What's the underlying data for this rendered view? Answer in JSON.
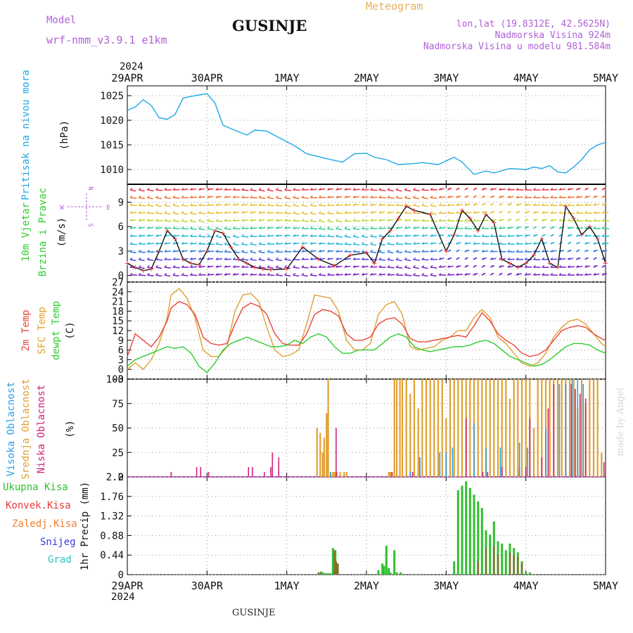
{
  "header": {
    "model_label": "Model",
    "model_name": "wrf-nmm_v3.9.1  e1km",
    "title": "GUSINJE",
    "chart_kind": "Meteogram",
    "coords": "lon,lat (19.8312E, 42.5625N)",
    "elevation": "Nadmorska Visina 924m",
    "model_elevation": "Nadmorska Visina u modelu 981.584m",
    "footer_title": "GUSINJE",
    "watermark": "made by Angel"
  },
  "colors": {
    "pressure": "#1fa8e8",
    "temp2m": "#e8463a",
    "sfc": "#e0a030",
    "dew": "#2fcc2f",
    "high_cloud": "#2aa0e8",
    "mid_cloud": "#e0a030",
    "low_cloud": "#d0207a",
    "total_precip": "#2fc02f",
    "conv_precip": "#e83a3a",
    "frozen_precip": "#f08030",
    "snow": "#3a3ae8",
    "hail": "#30c0c0",
    "model_color": "#b060d8",
    "info_color": "#b060d8",
    "chart_kind_color": "#e8b060",
    "wind_axis_color": "#b060d8"
  },
  "time_axis": {
    "year": "2024",
    "ticks": [
      "29APR",
      "30APR",
      "1MAY",
      "2MAY",
      "3MAY",
      "4MAY",
      "5MAY"
    ]
  },
  "chart_data": [
    {
      "type": "line",
      "panel": "pressure",
      "ylabel": [
        "Pritisak na nivou mora",
        "(hPa)"
      ],
      "yticks": [
        1010,
        1015,
        1020,
        1025
      ],
      "ylim": [
        1007,
        1027
      ],
      "grid": true,
      "series": [
        {
          "name": "Pritisak na nivou mora",
          "x": [
            0,
            0.1,
            0.2,
            0.3,
            0.4,
            0.5,
            0.6,
            0.7,
            0.85,
            1.0,
            1.1,
            1.2,
            1.3,
            1.5,
            1.6,
            1.75,
            1.9,
            2.1,
            2.25,
            2.5,
            2.7,
            2.85,
            3.0,
            3.1,
            3.25,
            3.4,
            3.6,
            3.7,
            3.9,
            4.1,
            4.2,
            4.35,
            4.5,
            4.6,
            4.8,
            5.0,
            5.1,
            5.2,
            5.3,
            5.4,
            5.5,
            5.6,
            5.7,
            5.8,
            5.9,
            6.0
          ],
          "values": [
            1022,
            1022.7,
            1024.2,
            1023.0,
            1020.5,
            1020.2,
            1021.2,
            1024.5,
            1025.0,
            1025.4,
            1023.5,
            1019.0,
            1018.3,
            1017.0,
            1018.0,
            1017.8,
            1016.5,
            1014.8,
            1013.2,
            1012.2,
            1011.5,
            1013.2,
            1013.3,
            1012.5,
            1012.0,
            1011.0,
            1011.2,
            1011.4,
            1011.0,
            1012.5,
            1011.5,
            1009.0,
            1009.7,
            1009.3,
            1010.2,
            1010.0,
            1010.5,
            1010.2,
            1010.8,
            1009.5,
            1009.3,
            1010.5,
            1012.0,
            1014.0,
            1015.0,
            1015.5
          ]
        }
      ]
    },
    {
      "type": "line",
      "panel": "wind",
      "ylabel": [
        "10m Vjetar",
        "Brzina i Pravac",
        "(m/s)"
      ],
      "direction_legend": {
        "n": "N",
        "s": "S",
        "e": "E",
        "w": "W"
      },
      "yticks": [
        0,
        3,
        6,
        9
      ],
      "ylim": [
        -0.8,
        11.2
      ],
      "grid": true,
      "series": [
        {
          "name": "10m Vjetar Brzina",
          "x": [
            0,
            0.1,
            0.2,
            0.3,
            0.4,
            0.5,
            0.6,
            0.7,
            0.8,
            0.9,
            1.0,
            1.1,
            1.2,
            1.3,
            1.4,
            1.5,
            1.6,
            1.7,
            1.8,
            2.0,
            2.2,
            2.4,
            2.6,
            2.8,
            3.0,
            3.1,
            3.2,
            3.3,
            3.4,
            3.5,
            3.6,
            3.8,
            4.0,
            4.1,
            4.2,
            4.3,
            4.4,
            4.5,
            4.6,
            4.7,
            4.8,
            4.9,
            5.0,
            5.1,
            5.2,
            5.3,
            5.4,
            5.5,
            5.6,
            5.7,
            5.8,
            5.9,
            6.0
          ],
          "values": [
            1.5,
            1.0,
            0.6,
            0.8,
            3.0,
            5.5,
            4.5,
            2.0,
            1.5,
            1.3,
            3.0,
            5.5,
            5.2,
            3.5,
            2.0,
            1.5,
            1.0,
            0.8,
            0.7,
            0.8,
            3.5,
            2.0,
            1.2,
            2.5,
            2.8,
            1.5,
            4.5,
            5.5,
            7.0,
            8.5,
            8.0,
            7.5,
            3.0,
            5.0,
            8.0,
            7.0,
            5.5,
            7.5,
            6.5,
            2.0,
            1.5,
            1.0,
            1.5,
            2.5,
            4.5,
            1.5,
            1.0,
            8.5,
            7.0,
            5.0,
            6.0,
            4.5,
            1.5
          ]
        }
      ]
    },
    {
      "type": "line",
      "panel": "temperature",
      "ylabel": [
        "2m Temp",
        "SFC Temp",
        "dewpt Temp",
        "(C)"
      ],
      "yticks": [
        -3,
        0,
        3,
        6,
        9,
        12,
        15,
        18,
        21,
        24,
        27
      ],
      "ylim": [
        -3,
        27
      ],
      "grid": true,
      "series": [
        {
          "name": "2m Temp",
          "x": [
            0,
            0.1,
            0.2,
            0.3,
            0.4,
            0.5,
            0.55,
            0.65,
            0.75,
            0.85,
            0.95,
            1.05,
            1.15,
            1.25,
            1.35,
            1.45,
            1.55,
            1.65,
            1.75,
            1.85,
            1.95,
            2.05,
            2.15,
            2.25,
            2.35,
            2.45,
            2.55,
            2.65,
            2.75,
            2.85,
            2.95,
            3.05,
            3.15,
            3.25,
            3.35,
            3.45,
            3.55,
            3.65,
            3.75,
            3.85,
            3.95,
            4.05,
            4.15,
            4.25,
            4.35,
            4.45,
            4.55,
            4.65,
            4.75,
            4.85,
            4.95,
            5.05,
            5.15,
            5.25,
            5.35,
            5.45,
            5.55,
            5.65,
            5.75,
            5.85,
            5.95,
            6.0
          ],
          "values": [
            4,
            11,
            9,
            7,
            10,
            15,
            19,
            21,
            20,
            17,
            10,
            8,
            7.5,
            8,
            14,
            19,
            20.5,
            19.5,
            17,
            11,
            8,
            7.5,
            7.5,
            11,
            17,
            18.5,
            18,
            16.5,
            11,
            9,
            9,
            10,
            14,
            15.5,
            16,
            14,
            9.5,
            8.5,
            8.5,
            9,
            9.5,
            10,
            10.5,
            10,
            13.5,
            17.5,
            15,
            11,
            9,
            7.5,
            5,
            4,
            4.5,
            6,
            9,
            12,
            13,
            13.5,
            13,
            11,
            9.5,
            9
          ]
        },
        {
          "name": "SFC Temp",
          "x": [
            0,
            0.1,
            0.2,
            0.3,
            0.4,
            0.5,
            0.55,
            0.65,
            0.75,
            0.85,
            0.95,
            1.05,
            1.15,
            1.25,
            1.35,
            1.45,
            1.55,
            1.65,
            1.75,
            1.85,
            1.95,
            2.05,
            2.15,
            2.25,
            2.35,
            2.45,
            2.55,
            2.65,
            2.75,
            2.85,
            2.95,
            3.05,
            3.15,
            3.25,
            3.35,
            3.45,
            3.55,
            3.65,
            3.75,
            3.85,
            3.95,
            4.05,
            4.15,
            4.25,
            4.35,
            4.45,
            4.55,
            4.65,
            4.75,
            4.85,
            4.95,
            5.05,
            5.15,
            5.25,
            5.35,
            5.45,
            5.55,
            5.65,
            5.75,
            5.85,
            5.95,
            6.0
          ],
          "values": [
            0,
            2,
            0,
            3,
            8,
            16,
            23,
            25,
            22,
            16,
            6,
            4,
            4,
            7,
            18,
            23,
            23.5,
            21,
            13,
            6,
            4,
            4.5,
            6,
            14,
            23,
            22.5,
            22,
            18,
            9,
            6,
            6,
            8,
            17,
            20,
            21,
            17,
            7,
            6,
            6.5,
            7,
            9,
            10,
            12,
            12,
            16,
            18.5,
            16,
            10,
            8,
            5,
            2,
            1,
            2,
            5,
            10,
            13,
            15,
            15.5,
            14,
            11,
            8,
            7
          ]
        },
        {
          "name": "dewpt Temp",
          "x": [
            0,
            0.1,
            0.2,
            0.3,
            0.4,
            0.5,
            0.6,
            0.7,
            0.8,
            0.9,
            1.0,
            1.1,
            1.2,
            1.3,
            1.4,
            1.5,
            1.6,
            1.7,
            1.8,
            1.9,
            2.0,
            2.1,
            2.2,
            2.3,
            2.4,
            2.5,
            2.6,
            2.7,
            2.8,
            2.9,
            3.0,
            3.1,
            3.2,
            3.3,
            3.4,
            3.5,
            3.6,
            3.7,
            3.8,
            3.9,
            4.0,
            4.1,
            4.2,
            4.3,
            4.4,
            4.5,
            4.6,
            4.7,
            4.8,
            4.9,
            5.0,
            5.1,
            5.2,
            5.3,
            5.4,
            5.5,
            5.6,
            5.7,
            5.8,
            5.9,
            6.0
          ],
          "values": [
            1,
            3,
            4,
            5,
            6,
            7,
            6.5,
            7,
            5,
            1,
            -1,
            2,
            6,
            8,
            9,
            10,
            9,
            8,
            7,
            7,
            7.5,
            9,
            8,
            10,
            11,
            10,
            7,
            5,
            5,
            6,
            6,
            6,
            8,
            10,
            11,
            10,
            7,
            6,
            5.5,
            6,
            6.5,
            7,
            7,
            7.5,
            8.5,
            9,
            8,
            6,
            4,
            3,
            2,
            1,
            1.5,
            3,
            5,
            7,
            8,
            8,
            7.5,
            6,
            5
          ]
        }
      ]
    },
    {
      "type": "bar",
      "panel": "cloud",
      "ylabel": [
        "Visoka Oblacnost",
        "Srednja Oblacnost",
        "Niska Oblacnost",
        "(%)"
      ],
      "yticks": [
        0,
        25,
        50,
        75,
        100
      ],
      "ylim": [
        0,
        100
      ],
      "grid": true,
      "series": [
        {
          "name": "Niska Oblacnost",
          "x": [
            0.55,
            0.87,
            0.92,
            1.02,
            1.52,
            1.57,
            1.72,
            1.8,
            1.82,
            1.9,
            2.62,
            3.32,
            3.58,
            3.67,
            4.25,
            4.46,
            4.52,
            4.7,
            4.92,
            5.0,
            5.05,
            5.2,
            5.28,
            5.35,
            5.42,
            5.5,
            5.57,
            5.62,
            5.68,
            5.75,
            5.98
          ],
          "values": [
            5,
            10,
            10,
            5,
            10,
            10,
            5,
            10,
            25,
            20,
            50,
            5,
            5,
            20,
            60,
            5,
            5,
            10,
            10,
            10,
            60,
            20,
            70,
            95,
            90,
            95,
            95,
            90,
            85,
            80,
            15
          ]
        },
        {
          "name": "Srednja Oblacnost",
          "x": [
            2.38,
            2.42,
            2.45,
            2.47,
            2.5,
            2.52,
            2.55,
            2.58,
            2.6,
            2.63,
            2.67,
            2.72,
            2.75,
            3.28,
            3.3,
            3.32,
            3.35,
            3.38,
            3.42,
            3.45,
            3.5,
            3.55,
            3.6,
            3.65,
            3.7,
            3.75,
            3.8,
            3.85,
            3.9,
            3.95,
            4.0,
            4.05,
            4.1,
            4.15,
            4.2,
            4.25,
            4.3,
            4.35,
            4.4,
            4.45,
            4.5,
            4.55,
            4.6,
            4.65,
            4.7,
            4.75,
            4.8,
            4.85,
            4.9,
            4.95,
            5.0,
            5.05,
            5.1,
            5.15,
            5.2,
            5.25,
            5.3,
            5.35,
            5.4,
            5.45,
            5.5,
            5.55,
            5.6,
            5.65,
            5.7,
            5.75,
            5.8,
            5.85,
            5.9,
            5.95
          ],
          "values": [
            50,
            45,
            25,
            40,
            65,
            100,
            5,
            5,
            5,
            5,
            5,
            5,
            5,
            5,
            5,
            5,
            100,
            100,
            100,
            100,
            100,
            85,
            100,
            70,
            100,
            100,
            100,
            100,
            100,
            100,
            60,
            100,
            100,
            100,
            100,
            100,
            100,
            100,
            100,
            100,
            100,
            100,
            100,
            100,
            100,
            100,
            80,
            100,
            100,
            100,
            100,
            100,
            50,
            100,
            100,
            100,
            100,
            100,
            100,
            100,
            100,
            100,
            100,
            70,
            100,
            75,
            100,
            100,
            100,
            25
          ]
        },
        {
          "name": "Visoka Oblacnost",
          "x": [
            2.55,
            3.55,
            3.67,
            3.92,
            4.0,
            4.08,
            4.35,
            4.5,
            4.68,
            4.92,
            5.02,
            5.25,
            5.42,
            5.5,
            5.58,
            5.65,
            5.72
          ],
          "values": [
            5,
            5,
            20,
            25,
            25,
            30,
            55,
            30,
            30,
            35,
            30,
            50,
            95,
            95,
            100,
            100,
            95
          ]
        }
      ]
    },
    {
      "type": "bar",
      "panel": "precip",
      "ylabel": [
        "Ukupna Kisa",
        "Konvek.Kisa",
        "Zaledj.Kisa",
        "Snijeg",
        "Grad",
        "1hr Precip (mm)"
      ],
      "yticks": [
        0,
        0.44,
        0.88,
        1.32,
        1.76,
        2.2
      ],
      "ylim": [
        0,
        2.2
      ],
      "grid": true,
      "series": [
        {
          "name": "Ukupna Kisa",
          "x": [
            2.4,
            2.43,
            2.46,
            2.49,
            2.52,
            2.55,
            2.58,
            2.61,
            2.64,
            3.15,
            3.2,
            3.22,
            3.25,
            3.28,
            3.3,
            3.35,
            3.38,
            3.43,
            4.1,
            4.15,
            4.2,
            4.25,
            4.3,
            4.35,
            4.4,
            4.45,
            4.5,
            4.55,
            4.6,
            4.65,
            4.7,
            4.75,
            4.8,
            4.85,
            4.9,
            4.95,
            5.0,
            5.05
          ],
          "values": [
            0.05,
            0.07,
            0.05,
            0.03,
            0.03,
            0.03,
            0.6,
            0.55,
            0.25,
            0.1,
            0.25,
            0.2,
            0.65,
            0.15,
            0.05,
            0.55,
            0.05,
            0.05,
            0.3,
            1.9,
            2.0,
            2.1,
            1.95,
            1.8,
            1.65,
            1.5,
            1.0,
            0.9,
            1.2,
            0.75,
            0.7,
            0.55,
            0.7,
            0.6,
            0.5,
            0.3,
            0.05,
            0.05
          ]
        },
        {
          "name": "Konvek.Kisa",
          "x": [
            2.4,
            2.43,
            2.6,
            2.62,
            2.64,
            4.4,
            4.5,
            4.6,
            4.65,
            4.8,
            4.85,
            4.9,
            4.95
          ],
          "values": [
            0.05,
            0.05,
            0.55,
            0.3,
            0.25,
            0.3,
            0.6,
            0.65,
            0.45,
            0.5,
            0.45,
            0.4,
            0.25
          ]
        }
      ]
    }
  ]
}
